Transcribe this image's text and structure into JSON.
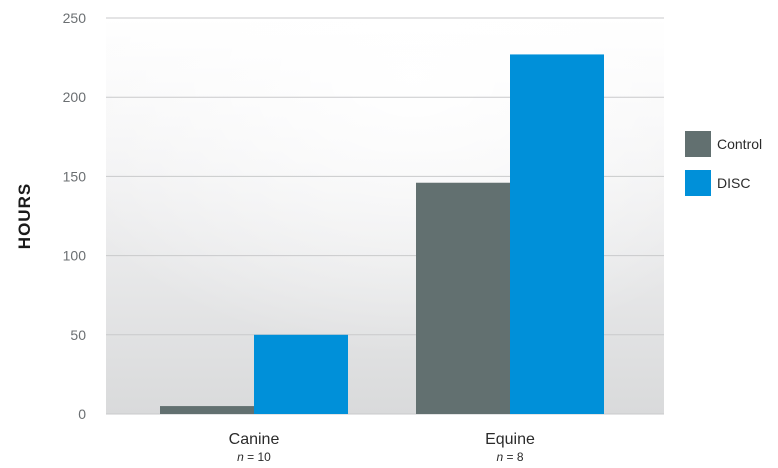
{
  "chart_data": {
    "type": "bar",
    "ylabel": "HOURS",
    "ylim": [
      0,
      250
    ],
    "yticks": [
      0,
      50,
      100,
      150,
      200,
      250
    ],
    "categories": [
      "Canine",
      "Equine"
    ],
    "category_notes": [
      {
        "prefix": "n",
        "suffix": " = 10"
      },
      {
        "prefix": "n",
        "suffix": " = 8"
      }
    ],
    "series": [
      {
        "name": "Control",
        "color": "#627070",
        "values": [
          5,
          146
        ]
      },
      {
        "name": "DISC",
        "color": "#0090d9",
        "values": [
          50,
          227
        ]
      }
    ],
    "legend_position": "right",
    "grid": true,
    "background_gradient": true
  }
}
